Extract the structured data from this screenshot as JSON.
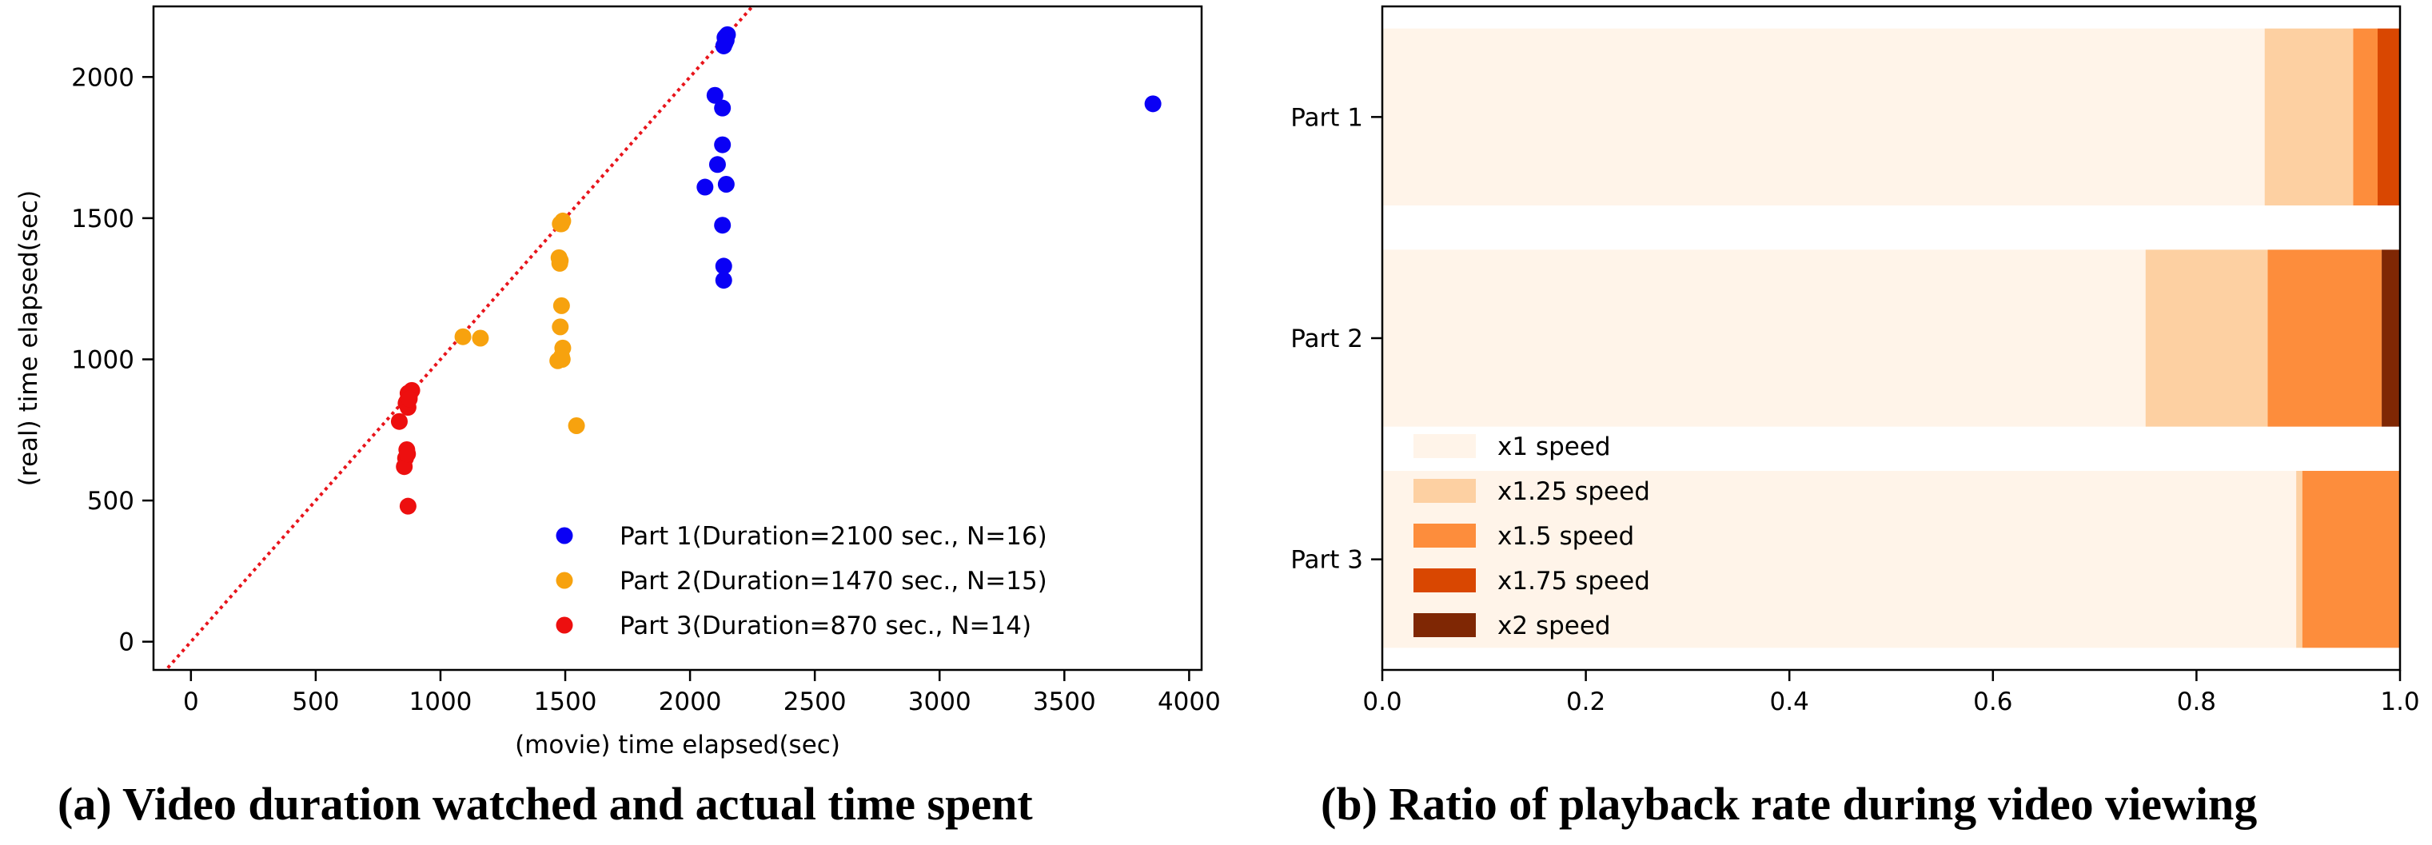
{
  "chart_data": [
    {
      "type": "scatter",
      "xlabel": "(movie) time elapsed(sec)",
      "ylabel": "(real) time elapsed(sec)",
      "xlim": [
        -150,
        4050
      ],
      "ylim": [
        -100,
        2250
      ],
      "xticks": [
        0,
        500,
        1000,
        1500,
        2000,
        2500,
        3000,
        3500,
        4000
      ],
      "yticks": [
        0,
        500,
        1000,
        1500,
        2000
      ],
      "xtick_labels": [
        "0",
        "500",
        "1000",
        "1500",
        "2000",
        "2500",
        "3000",
        "3500",
        "4000"
      ],
      "ytick_labels": [
        "0",
        "500",
        "1000",
        "1500",
        "2000"
      ],
      "reference_line": {
        "style": "dotted",
        "color": "#e8141b",
        "slope": 1,
        "intercept": 0
      },
      "legend_position": "lower-right",
      "series": [
        {
          "name": "Part 1(Duration=2100 sec., N=16)",
          "color": "#0a00f5",
          "points": [
            [
              2150,
              2150
            ],
            [
              2140,
              2140
            ],
            [
              2145,
              2130
            ],
            [
              2135,
              2110
            ],
            [
              2100,
              1935
            ],
            [
              2130,
              1890
            ],
            [
              2130,
              1760
            ],
            [
              2110,
              1690
            ],
            [
              2145,
              1620
            ],
            [
              2060,
              1610
            ],
            [
              2130,
              1475
            ],
            [
              2135,
              1330
            ],
            [
              2135,
              1280
            ],
            [
              3855,
              1905
            ],
            [
              2145,
              2145
            ],
            [
              2140,
              2120
            ]
          ]
        },
        {
          "name": "Part 2(Duration=1470 sec., N=15)",
          "color": "#f7a20e",
          "points": [
            [
              1490,
              1490
            ],
            [
              1480,
              1480
            ],
            [
              1475,
              1360
            ],
            [
              1478,
              1340
            ],
            [
              1485,
              1190
            ],
            [
              1480,
              1115
            ],
            [
              1490,
              1040
            ],
            [
              1485,
              1010
            ],
            [
              1470,
              995
            ],
            [
              1090,
              1080
            ],
            [
              1160,
              1075
            ],
            [
              1545,
              765
            ],
            [
              1485,
              1480
            ],
            [
              1480,
              1350
            ],
            [
              1488,
              1000
            ]
          ]
        },
        {
          "name": "Part 3(Duration=870 sec., N=14)",
          "color": "#ed0f0f",
          "points": [
            [
              885,
              890
            ],
            [
              870,
              880
            ],
            [
              875,
              870
            ],
            [
              865,
              850
            ],
            [
              870,
              830
            ],
            [
              835,
              780
            ],
            [
              865,
              680
            ],
            [
              860,
              650
            ],
            [
              855,
              620
            ],
            [
              870,
              480
            ],
            [
              880,
              885
            ],
            [
              862,
              845
            ],
            [
              868,
              665
            ],
            [
              875,
              860
            ]
          ]
        }
      ]
    },
    {
      "type": "bar",
      "orientation": "horizontal-stacked",
      "categories": [
        "Part 1",
        "Part 2",
        "Part 3"
      ],
      "xlim": [
        0,
        1
      ],
      "xticks": [
        0,
        0.2,
        0.4,
        0.6,
        0.8,
        1.0
      ],
      "xtick_labels": [
        "0.0",
        "0.2",
        "0.4",
        "0.6",
        "0.8",
        "1.0"
      ],
      "legend_position": "lower-left",
      "series": [
        {
          "name": "x1 speed",
          "color": "#fff4e9",
          "values": [
            0.867,
            0.75,
            0.898
          ]
        },
        {
          "name": "x1.25 speed",
          "color": "#fdd0a2",
          "values": [
            0.087,
            0.12,
            0.006
          ]
        },
        {
          "name": "x1.5 speed",
          "color": "#fd8d3c",
          "values": [
            0.024,
            0.112,
            0.096
          ]
        },
        {
          "name": "x1.75 speed",
          "color": "#d94701",
          "values": [
            0.022,
            0.0,
            0.0
          ]
        },
        {
          "name": "x2 speed",
          "color": "#7f2704",
          "values": [
            0.0,
            0.018,
            0.0
          ]
        }
      ]
    }
  ],
  "captions": {
    "a": "(a) Video duration watched and actual time spent",
    "b": "(b) Ratio of playback rate during video viewing"
  }
}
